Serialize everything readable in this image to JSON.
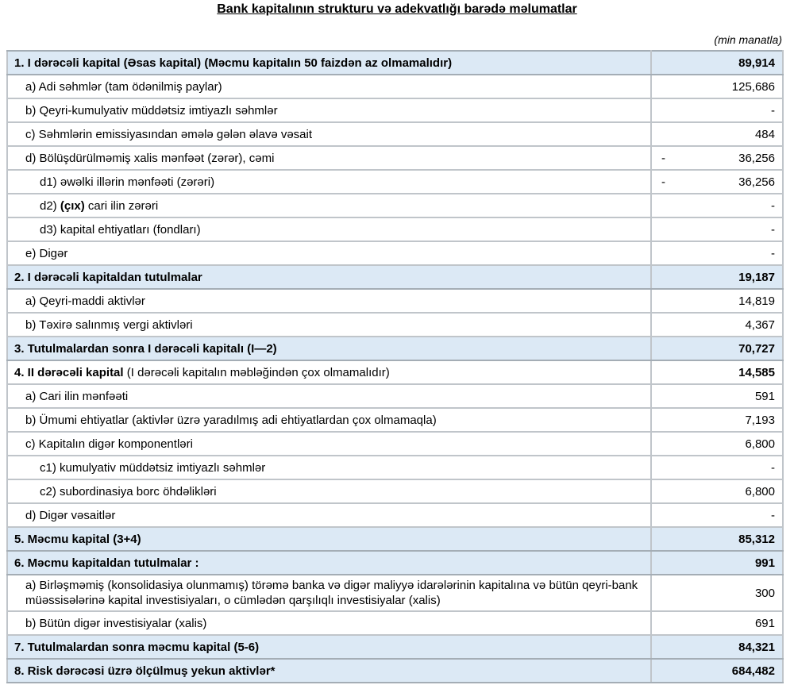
{
  "title": "Bank kapitalının strukturu və adekvatlığı barədə məlumatlar",
  "unit_note": "(min manatla)",
  "colors": {
    "section_row_bg": "#dce9f5",
    "grid_border": "#c0c5ca",
    "section_border": "#a4adb5",
    "text": "#000000"
  },
  "table": {
    "rows": [
      {
        "bold": "1. I dərəcəli kapital",
        "post": " (Əsas kapital) (Məcmu kapitalın 50 faizdən  az olmamalıdır)",
        "value": "89,914",
        "section": true,
        "value_bold": true,
        "indent": 0
      },
      {
        "pre": "a) Adi səhmlər (tam ödənilmiş paylar)",
        "value": "125,686",
        "indent": 1
      },
      {
        "pre": "b) Qeyri-kumulyativ müddətsiz imtiyazlı səhmlər",
        "value": "-",
        "indent": 1
      },
      {
        "pre": "c) Səhmlərin emissiyasından əmələ gələn  əlavə vəsait",
        "value": "484",
        "indent": 1
      },
      {
        "pre": "d)   Bölüşdürülməmiş xalis mənfəət (zərər), cəmi",
        "neg": "-",
        "value": "36,256",
        "indent": 1
      },
      {
        "pre": "d1) əwəlki illərin mənfəəti (zərəri)",
        "neg": "-",
        "value": "36,256",
        "indent": 2
      },
      {
        "pre": "d2) ",
        "bold": "(çıx)",
        "post": " cari ilin zərəri",
        "value": "-",
        "indent": 2
      },
      {
        "pre": "d3) kapital ehtiyatları (fondları)",
        "value": "-",
        "indent": 2
      },
      {
        "pre": "e) Digər",
        "value": "-",
        "indent": 1
      },
      {
        "bold": "2. I dərəcəli kapitaldan  tutulmalar",
        "value": "19,187",
        "section": true,
        "value_bold": true,
        "indent": 0
      },
      {
        "pre": "a) Qeyri-maddi aktivlər",
        "value": "14,819",
        "indent": 1
      },
      {
        "pre": "b) Təxirə salınmış vergi aktivləri",
        "value": "4,367",
        "indent": 1
      },
      {
        "bold": "3. Tutulmalardan  sonra I dərəcəli kapitalı (I—2)",
        "value": "70,727",
        "section": true,
        "value_bold": true,
        "indent": 0
      },
      {
        "bold": "4. II dərəcəli  kapital",
        "post": " (I dərəcəli  kapitalın  məbləğindən çox olmamalıdır)",
        "value": "14,585",
        "value_bold": true,
        "indent": 0
      },
      {
        "pre": "a) Cari ilin mənfəəti",
        "value": "591",
        "indent": 1
      },
      {
        "pre": "b) Ümumi ehtiyatlar (aktivlər üzrə yaradılmış adi ehtiyatlardan çox olmamaqla)",
        "value": "7,193",
        "indent": 1
      },
      {
        "pre": "c)  Kapitalın digər komponentləri",
        "value": "6,800",
        "indent": 1
      },
      {
        "pre": "c1) kumulyativ müddətsiz imtiyazlı səhmlər",
        "value": "-",
        "indent": 2
      },
      {
        "pre": "c2) subordinasiya borc öhdəlikləri",
        "value": "6,800",
        "indent": 2
      },
      {
        "pre": "d) Digər vəsaitlər",
        "value": "-",
        "indent": 1
      },
      {
        "bold": "5. Məcmu kapital (3+4)",
        "value": "85,312",
        "section": true,
        "value_bold": true,
        "indent": 0
      },
      {
        "bold": "6. Məcmu kapitaldan tutulmalar :",
        "value": "991",
        "section": true,
        "value_bold": true,
        "indent": 0
      },
      {
        "pre": "a)   Birləşməmiş (konsolidasiya olunmamış) törəmə banka və digər maliyyə idarələrinin kapitalına və bütün qeyri-bank müəssisələrinə kapital investisiyaları, o cümlədən qarşılıqlı investisiyalar (xalis)",
        "value": "300",
        "indent": 1,
        "tall": true
      },
      {
        "pre": "b)    Bütün digər investisiyalar (xalis)",
        "value": "691",
        "indent": 1
      },
      {
        "bold": "7. Tutulmalardan  sonra məcmu kapital (5-6)",
        "value": "84,321",
        "section": true,
        "value_bold": true,
        "indent": 0
      },
      {
        "bold": "8. Risk dərəcəsi üzrə ölçülmuş  yekun aktivlər*",
        "value": "684,482",
        "section": true,
        "value_bold": true,
        "indent": 0
      }
    ]
  }
}
